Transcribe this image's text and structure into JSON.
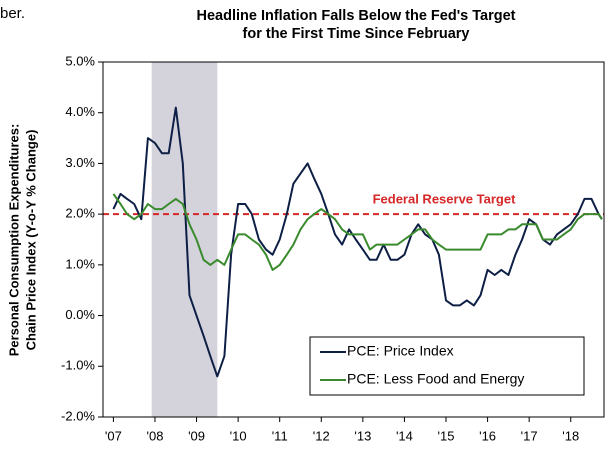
{
  "fragment": "ber.",
  "chart_data": {
    "type": "line",
    "title": [
      "Headline Inflation Falls Below the Fed's Target",
      "for the First Time Since February"
    ],
    "y_label": [
      "Personal Consumption Expenditures:",
      "Chain Price Index (Y-o-Y % Change)"
    ],
    "annotation": "Federal Reserve Target",
    "target": 2.0,
    "target_color": "#d62728",
    "recession": [
      2007.92,
      2009.5
    ],
    "recession_color": "#d4d3dc",
    "xlim": [
      2006.75,
      2018.8
    ],
    "xticks": [
      {
        "value": 2007,
        "label": "'07"
      },
      {
        "value": 2008,
        "label": "'08"
      },
      {
        "value": 2009,
        "label": "'09"
      },
      {
        "value": 2010,
        "label": "'10"
      },
      {
        "value": 2011,
        "label": "'11"
      },
      {
        "value": 2012,
        "label": "'12"
      },
      {
        "value": 2013,
        "label": "'13"
      },
      {
        "value": 2014,
        "label": "'14"
      },
      {
        "value": 2015,
        "label": "'15"
      },
      {
        "value": 2016,
        "label": "'16"
      },
      {
        "value": 2017,
        "label": "'17"
      },
      {
        "value": 2018,
        "label": "'18"
      }
    ],
    "ylim": [
      -2,
      5
    ],
    "yticks": [
      {
        "value": -2,
        "label": "-2.0%"
      },
      {
        "value": -1,
        "label": "-1.0%"
      },
      {
        "value": 0,
        "label": "0.0%"
      },
      {
        "value": 1,
        "label": "1.0%"
      },
      {
        "value": 2,
        "label": "2.0%"
      },
      {
        "value": 3,
        "label": "3.0%"
      },
      {
        "value": 4,
        "label": "4.0%"
      },
      {
        "value": 5,
        "label": "5.0%"
      }
    ],
    "legend": "lower right",
    "x": [
      2007,
      2007.17,
      2007.33,
      2007.5,
      2007.67,
      2007.83,
      2008,
      2008.17,
      2008.33,
      2008.5,
      2008.67,
      2008.83,
      2009,
      2009.17,
      2009.33,
      2009.5,
      2009.67,
      2009.83,
      2010,
      2010.17,
      2010.33,
      2010.5,
      2010.67,
      2010.83,
      2011,
      2011.17,
      2011.33,
      2011.5,
      2011.67,
      2011.83,
      2012,
      2012.17,
      2012.33,
      2012.5,
      2012.67,
      2012.83,
      2013,
      2013.17,
      2013.33,
      2013.5,
      2013.67,
      2013.83,
      2014,
      2014.17,
      2014.33,
      2014.5,
      2014.67,
      2014.83,
      2015,
      2015.17,
      2015.33,
      2015.5,
      2015.67,
      2015.83,
      2016,
      2016.17,
      2016.33,
      2016.5,
      2016.67,
      2016.83,
      2017,
      2017.17,
      2017.33,
      2017.5,
      2017.67,
      2017.83,
      2018,
      2018.17,
      2018.33,
      2018.5,
      2018.67,
      2018.75
    ],
    "series": [
      {
        "name": "PCE: Price Index",
        "color": "#0d1f45",
        "values": [
          2.1,
          2.4,
          2.3,
          2.2,
          1.9,
          3.5,
          3.4,
          3.2,
          3.2,
          4.1,
          3.0,
          0.4,
          0.0,
          -0.4,
          -0.8,
          -1.2,
          -0.8,
          1.2,
          2.2,
          2.2,
          2.0,
          1.5,
          1.3,
          1.2,
          1.5,
          2.0,
          2.6,
          2.8,
          3.0,
          2.7,
          2.4,
          2.0,
          1.6,
          1.4,
          1.7,
          1.5,
          1.3,
          1.1,
          1.1,
          1.4,
          1.1,
          1.1,
          1.2,
          1.6,
          1.8,
          1.6,
          1.5,
          1.2,
          0.3,
          0.2,
          0.2,
          0.3,
          0.2,
          0.4,
          0.9,
          0.8,
          0.9,
          0.8,
          1.2,
          1.5,
          1.9,
          1.8,
          1.5,
          1.4,
          1.6,
          1.7,
          1.8,
          2.0,
          2.3,
          2.3,
          2.0,
          1.9
        ]
      },
      {
        "name": "PCE: Less Food and Energy",
        "color": "#3a8a2e",
        "values": [
          2.4,
          2.2,
          2.0,
          1.9,
          2.0,
          2.2,
          2.1,
          2.1,
          2.2,
          2.3,
          2.2,
          1.8,
          1.5,
          1.1,
          1.0,
          1.1,
          1.0,
          1.3,
          1.6,
          1.6,
          1.5,
          1.4,
          1.2,
          0.9,
          1.0,
          1.2,
          1.4,
          1.7,
          1.9,
          2.0,
          2.1,
          2.0,
          1.9,
          1.7,
          1.6,
          1.6,
          1.6,
          1.3,
          1.4,
          1.4,
          1.4,
          1.4,
          1.5,
          1.6,
          1.7,
          1.7,
          1.5,
          1.4,
          1.3,
          1.3,
          1.3,
          1.3,
          1.3,
          1.3,
          1.6,
          1.6,
          1.6,
          1.7,
          1.7,
          1.8,
          1.8,
          1.8,
          1.5,
          1.5,
          1.5,
          1.6,
          1.7,
          1.9,
          2.0,
          2.0,
          2.0,
          1.9
        ]
      }
    ]
  }
}
